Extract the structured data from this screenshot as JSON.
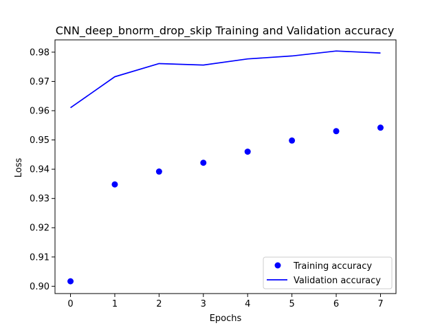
{
  "chart_data": {
    "type": "line",
    "title": "CNN_deep_bnorm_drop_skip Training and Validation accuracy",
    "xlabel": "Epochs",
    "ylabel": "Loss",
    "xlim": [
      -0.35,
      7.35
    ],
    "ylim": [
      0.8975,
      0.9842
    ],
    "xticks": [
      0,
      1,
      2,
      3,
      4,
      5,
      6,
      7
    ],
    "yticks": [
      0.9,
      0.91,
      0.92,
      0.93,
      0.94,
      0.95,
      0.96,
      0.97,
      0.98
    ],
    "ytick_labels": [
      "0.90",
      "0.91",
      "0.92",
      "0.93",
      "0.94",
      "0.95",
      "0.96",
      "0.97",
      "0.98"
    ],
    "x": [
      0,
      1,
      2,
      3,
      4,
      5,
      6,
      7
    ],
    "series": [
      {
        "name": "Training accuracy",
        "style": "markers",
        "color": "#0000ff",
        "values": [
          0.9017,
          0.9348,
          0.9392,
          0.9422,
          0.946,
          0.9498,
          0.953,
          0.9542
        ]
      },
      {
        "name": "Validation accuracy",
        "style": "line",
        "color": "#0000ff",
        "values": [
          0.961,
          0.9716,
          0.9761,
          0.9756,
          0.9777,
          0.9787,
          0.9804,
          0.9797
        ]
      }
    ],
    "legend_position": "lower-right",
    "grid": false
  }
}
